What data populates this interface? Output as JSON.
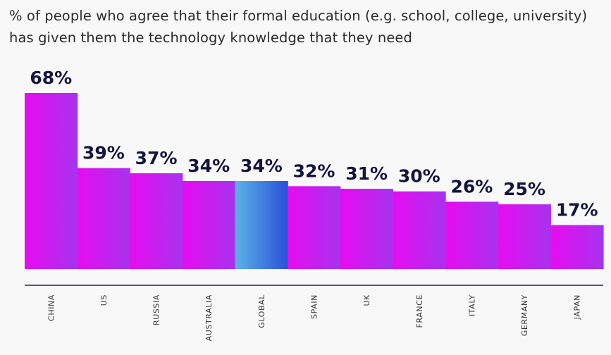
{
  "chart_data": {
    "type": "bar",
    "title": "% of people who agree that their formal education (e.g. school, college, university) has given them the technology knowledge that they need",
    "categories": [
      "CHINA",
      "US",
      "RUSSIA",
      "AUSTRALIA",
      "GLOBAL",
      "SPAIN",
      "UK",
      "FRANCE",
      "ITALY",
      "GERMANY",
      "JAPAN"
    ],
    "values": [
      68,
      39,
      37,
      34,
      34,
      32,
      31,
      30,
      26,
      25,
      17
    ],
    "value_labels": [
      "68%",
      "39%",
      "37%",
      "34%",
      "34%",
      "32%",
      "31%",
      "30%",
      "26%",
      "25%",
      "17%"
    ],
    "highlight_category": "GLOBAL",
    "xlabel": "",
    "ylabel": "",
    "ylim": [
      0,
      68
    ],
    "grid": false,
    "legend": "none",
    "colors": {
      "bar_gradient_start": "#e60cf0",
      "bar_gradient_end": "#a633ee",
      "highlight_gradient_start": "#5ab4e6",
      "highlight_gradient_end": "#2a4fd8",
      "value_label": "#131540",
      "axis_line": "#1f2150",
      "background": "#f8f8f8"
    }
  }
}
